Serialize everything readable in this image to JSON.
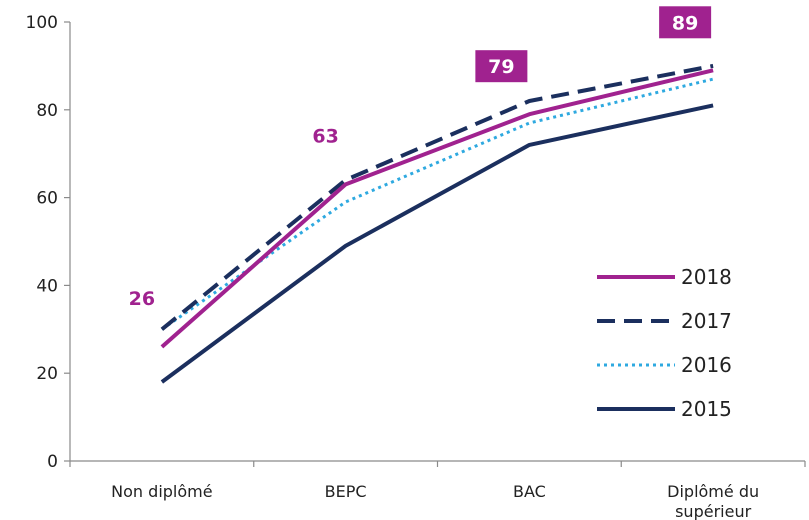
{
  "chart_data": {
    "type": "line",
    "categories": [
      [
        "Non diplômé"
      ],
      [
        "BEPC"
      ],
      [
        "BAC"
      ],
      [
        "Diplômé du",
        "supérieur"
      ]
    ],
    "ylim": [
      0,
      100
    ],
    "yticks": [
      0,
      20,
      40,
      60,
      80,
      100
    ],
    "grid": false,
    "legend_position": "right",
    "series": [
      {
        "name": "2015",
        "values": [
          18,
          49,
          72,
          81
        ],
        "color": "#1b2f5e",
        "style": "solid"
      },
      {
        "name": "2016",
        "values": [
          30,
          59,
          77,
          87
        ],
        "color": "#2ea9e0",
        "style": "dotted"
      },
      {
        "name": "2017",
        "values": [
          30,
          64,
          82,
          90
        ],
        "color": "#1b2f5e",
        "style": "dashed"
      },
      {
        "name": "2018",
        "values": [
          26,
          63,
          79,
          89
        ],
        "color": "#a0228f",
        "style": "solid"
      }
    ],
    "legend_order": [
      "2018",
      "2017",
      "2016",
      "2015"
    ],
    "data_labels": [
      {
        "series": "2018",
        "index": 0,
        "text": "26",
        "boxed": false
      },
      {
        "series": "2018",
        "index": 1,
        "text": "63",
        "boxed": false
      },
      {
        "series": "2018",
        "index": 2,
        "text": "79",
        "boxed": true
      },
      {
        "series": "2018",
        "index": 3,
        "text": "89",
        "boxed": true
      }
    ],
    "label_color": "#a0228f"
  }
}
